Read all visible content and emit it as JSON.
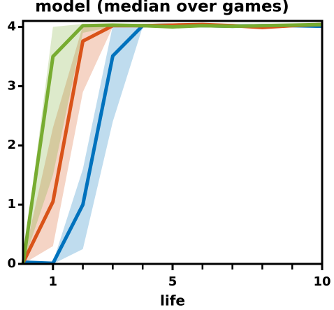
{
  "chart_data": {
    "type": "line",
    "title": "model (median over games)",
    "xlabel": "life",
    "x": [
      0,
      1,
      2,
      3,
      4,
      5,
      6,
      7,
      8,
      9,
      10
    ],
    "xlim": [
      0,
      10
    ],
    "xticks": [
      1,
      5,
      10
    ],
    "xminorticks": [
      2,
      3,
      4,
      6,
      7,
      8,
      9
    ],
    "ylim": [
      0,
      4.1
    ],
    "yticks": [
      0,
      1,
      2,
      3,
      4
    ],
    "series": [
      {
        "color": "#0072bd",
        "values": [
          0.03,
          0.01,
          1.0,
          3.51,
          4.02,
          4.03,
          4.02,
          4.01,
          4.02,
          4.02,
          4.01
        ],
        "lower": [
          0,
          0,
          0.25,
          2.4,
          4.0,
          4.0,
          4.0,
          4.0,
          4.0,
          4.0,
          4.0
        ],
        "upper": [
          0.05,
          0.03,
          1.6,
          4.02,
          4.05,
          4.05,
          4.05,
          4.05,
          4.05,
          4.05,
          4.05
        ]
      },
      {
        "color": "#d95319",
        "values": [
          0.02,
          1.05,
          3.76,
          4.02,
          4.02,
          4.03,
          4.04,
          4.02,
          3.99,
          4.02,
          4.04
        ],
        "lower": [
          0,
          0.3,
          2.9,
          4.0,
          4.0,
          4.0,
          4.0,
          4.0,
          3.97,
          4.0,
          4.0
        ],
        "upper": [
          0.05,
          2.3,
          4.02,
          4.05,
          4.05,
          4.05,
          4.06,
          4.05,
          4.02,
          4.05,
          4.06
        ]
      },
      {
        "color": "#77ac30",
        "values": [
          0.0,
          3.5,
          4.02,
          4.03,
          4.02,
          4.0,
          4.02,
          4.01,
          4.02,
          4.03,
          4.04
        ],
        "lower": [
          0,
          1.5,
          3.9,
          4.0,
          4.0,
          3.98,
          4.0,
          4.0,
          4.0,
          4.0,
          4.0
        ],
        "upper": [
          0.05,
          4.0,
          4.05,
          4.05,
          4.05,
          4.03,
          4.05,
          4.04,
          4.05,
          4.05,
          4.06
        ]
      }
    ]
  }
}
